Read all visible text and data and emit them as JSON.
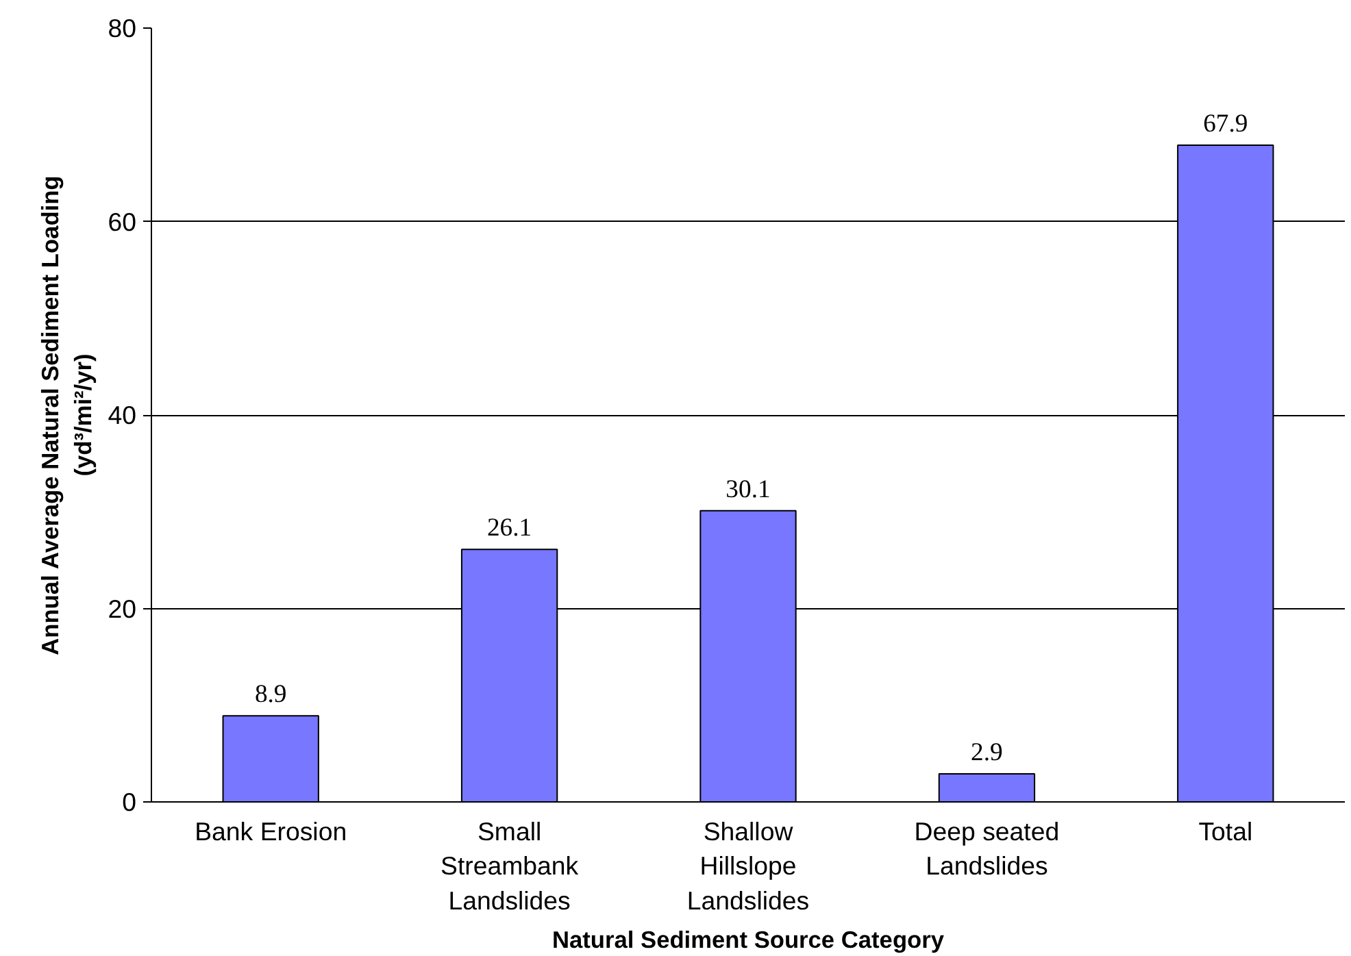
{
  "chart_data": {
    "type": "bar",
    "xlabel": "Natural Sediment Source Category",
    "ylabel": "Annual Average Natural Sediment Loading\n(yd³/mi²/yr)",
    "categories": [
      "Bank Erosion",
      "Small\nStreambank\nLandslides",
      "Shallow\nHillslope\nLandslides",
      "Deep seated\nLandslides",
      "Total"
    ],
    "values": [
      8.9,
      26.1,
      30.1,
      2.9,
      67.9
    ],
    "color": "#7777ff",
    "ylim": [
      0,
      80
    ],
    "yticks": [
      0,
      20,
      40,
      60,
      80
    ],
    "grid": "y",
    "data_labels": true
  }
}
